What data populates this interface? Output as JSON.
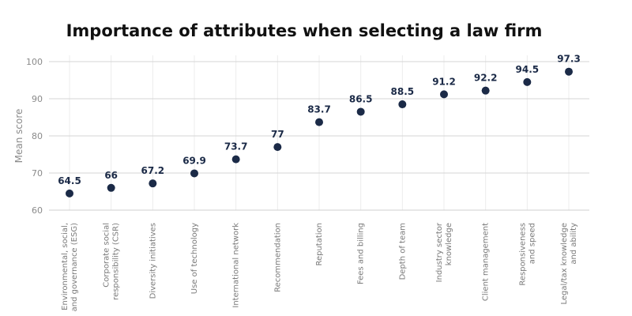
{
  "chart_data": {
    "type": "scatter",
    "title": "Importance of attributes when selecting a law firm",
    "xlabel": "",
    "ylabel": "Mean score",
    "ylim": [
      60,
      100
    ],
    "yticks": [
      60,
      70,
      80,
      90,
      100
    ],
    "grid": true,
    "categories": [
      [
        "Environmental, social,",
        "and governance (ESG)"
      ],
      [
        "Corporate social",
        "responsibility (CSR)"
      ],
      [
        "Diversity initiatives"
      ],
      [
        "Use of technology"
      ],
      [
        "International network"
      ],
      [
        "Recommendation"
      ],
      [
        "Reputation"
      ],
      [
        "Fees and billing"
      ],
      [
        "Depth of team"
      ],
      [
        "Industry sector",
        "knowledge"
      ],
      [
        "Client management"
      ],
      [
        "Responsiveness",
        "and speed"
      ],
      [
        "Legal/tax knowledge",
        "and ability"
      ]
    ],
    "values": [
      64.5,
      66,
      67.2,
      69.9,
      73.7,
      77,
      83.7,
      86.5,
      88.5,
      91.2,
      92.2,
      94.5,
      97.3
    ],
    "value_labels": [
      "64.5",
      "66",
      "67.2",
      "69.9",
      "73.7",
      "77",
      "83.7",
      "86.5",
      "88.5",
      "91.2",
      "92.2",
      "94.5",
      "97.3"
    ],
    "point_color": "#1b2a47"
  }
}
